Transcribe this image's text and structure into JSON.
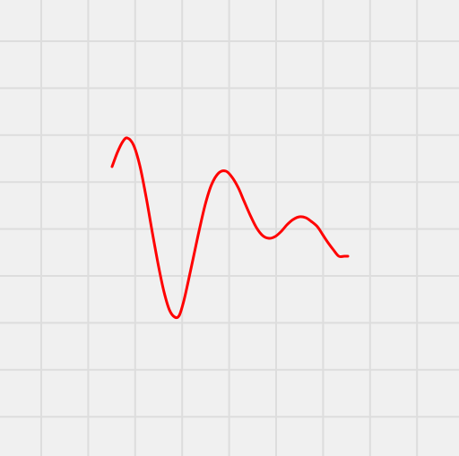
{
  "chart_data": {
    "type": "line",
    "title": "",
    "xlabel": "",
    "ylabel": "",
    "grid": true,
    "legend": "none",
    "series": [
      {
        "color": "#ff0000",
        "x": [
          125,
          131,
          137,
          142,
          149,
          156,
          163,
          170,
          177,
          183,
          189,
          195,
          200,
          205,
          210,
          216,
          222,
          229,
          236,
          244,
          252,
          259,
          266,
          272,
          279,
          286,
          293,
          300,
          307,
          314,
          320,
          327,
          334,
          341,
          347,
          354,
          360,
          366,
          372,
          378,
          384,
          388
        ],
        "y": [
          186,
          170,
          158,
          154,
          162,
          185,
          220,
          260,
          298,
          326,
          346,
          354,
          352,
          336,
          314,
          286,
          258,
          228,
          206,
          193,
          191,
          198,
          210,
          224,
          240,
          254,
          263,
          266,
          264,
          258,
          251,
          245,
          242,
          243,
          247,
          253,
          262,
          271,
          279,
          286,
          286,
          286
        ]
      }
    ]
  },
  "colors": {
    "background": "#f0f0f0",
    "grid": "#dddddd",
    "line": "#ff0000"
  }
}
